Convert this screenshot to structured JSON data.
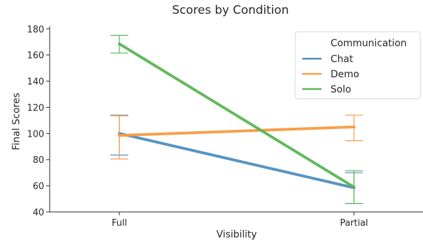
{
  "chart_data": {
    "type": "line",
    "title": "Scores by Condition",
    "xlabel": "Visibility",
    "ylabel": "Final Scores",
    "categories": [
      "Full",
      "Partial"
    ],
    "ylim": [
      40,
      182
    ],
    "yticks": [
      40,
      60,
      80,
      100,
      120,
      140,
      160,
      180
    ],
    "grid": false,
    "legend": {
      "title": "Communication",
      "placement": "top-right"
    },
    "series": [
      {
        "name": "Chat",
        "color": "#4c8fbd",
        "values": [
          100,
          58.5
        ],
        "err_low": [
          83.5,
          46.5
        ],
        "err_high": [
          114,
          70
        ]
      },
      {
        "name": "Demo",
        "color": "#f99a41",
        "values": [
          98.5,
          105
        ],
        "err_low": [
          80.5,
          94.5
        ],
        "err_high": [
          113.5,
          114
        ]
      },
      {
        "name": "Solo",
        "color": "#58b553",
        "values": [
          168.5,
          59
        ],
        "err_low": [
          161.5,
          46.5
        ],
        "err_high": [
          175,
          71.5
        ]
      }
    ]
  }
}
